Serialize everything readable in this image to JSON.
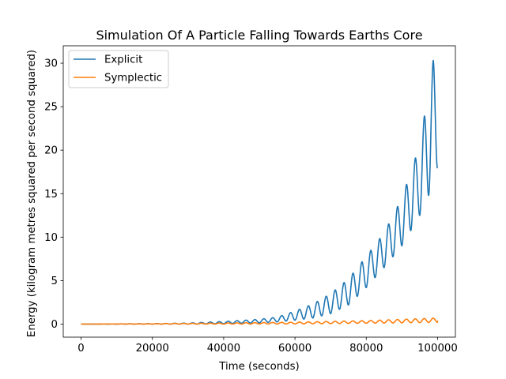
{
  "chart_data": {
    "type": "line",
    "title": "Simulation Of A Particle Falling Towards Earths Core",
    "xlabel": "Time (seconds)",
    "ylabel": "Energy (kilogram metres squared per second squared)",
    "xlim": [
      -5000,
      105000
    ],
    "ylim": [
      -1.5,
      32
    ],
    "xticks": [
      0,
      20000,
      40000,
      60000,
      80000,
      100000
    ],
    "yticks": [
      0,
      5,
      10,
      15,
      20,
      25,
      30
    ],
    "grid": false,
    "legend_position": "top-left",
    "oscillation_period": 2500,
    "series": [
      {
        "name": "Explicit",
        "color": "#1f77b4",
        "x": [
          0,
          10000,
          20000,
          30000,
          40000,
          50000,
          55000,
          60000,
          65000,
          70000,
          75000,
          80000,
          85000,
          90000,
          95000,
          98800,
          100000
        ],
        "upper": [
          0,
          0.02,
          0.05,
          0.12,
          0.3,
          0.55,
          0.8,
          1.5,
          2.3,
          3.5,
          5.2,
          7.8,
          10.5,
          14.5,
          20.6,
          30.4,
          30.4
        ],
        "lower": [
          0,
          0,
          0,
          0,
          0.05,
          0.15,
          0.25,
          0.45,
          0.7,
          1.2,
          2.2,
          4.2,
          6.5,
          9.0,
          12.5,
          16.0,
          18.0
        ],
        "end_value": 18.0
      },
      {
        "name": "Symplectic",
        "color": "#ff7f0e",
        "x": [
          0,
          20000,
          40000,
          60000,
          80000,
          90000,
          100000
        ],
        "upper": [
          0,
          0.05,
          0.12,
          0.22,
          0.4,
          0.55,
          0.7
        ],
        "lower": [
          0,
          0,
          0,
          0.02,
          0.1,
          0.15,
          0.2
        ],
        "end_value": 0.4
      }
    ]
  }
}
